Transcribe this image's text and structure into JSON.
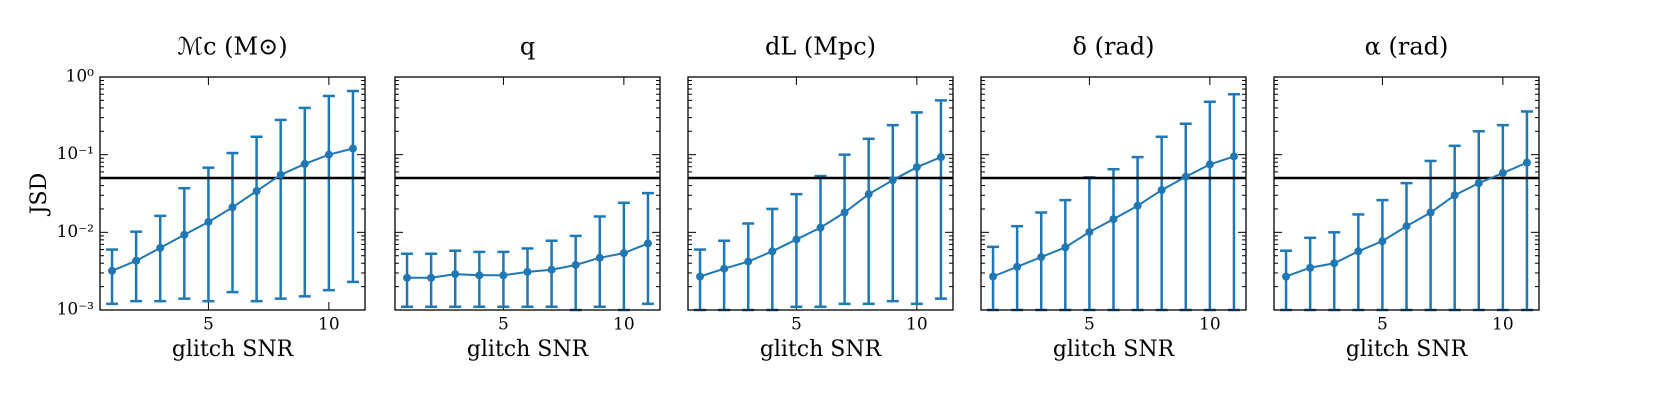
{
  "chart_data": [
    {
      "type": "errorline",
      "title": "ℳc (M⊙)",
      "xlabel": "glitch SNR",
      "ylabel": "JSD",
      "log_y": true,
      "color": "#1f77b4",
      "hline": 0.05,
      "hline_color": "#000000",
      "x": [
        1,
        2,
        3,
        4,
        5,
        6,
        7,
        8,
        9,
        10,
        11
      ],
      "values": [
        0.0032,
        0.0043,
        0.0063,
        0.0093,
        0.0136,
        0.021,
        0.034,
        0.055,
        0.076,
        0.1,
        0.12
      ],
      "lower": [
        0.0012,
        0.0013,
        0.0013,
        0.0014,
        0.0013,
        0.0017,
        0.0013,
        0.0014,
        0.0015,
        0.0018,
        0.0023
      ],
      "upper": [
        0.006,
        0.0102,
        0.0163,
        0.037,
        0.068,
        0.105,
        0.17,
        0.28,
        0.4,
        0.57,
        0.66
      ],
      "xlim": [
        0.5,
        11.5
      ],
      "xticks": [
        5,
        10
      ],
      "ylim": [
        0.001,
        1
      ],
      "yticks": [
        {
          "value": 1,
          "label": "10⁰"
        },
        {
          "value": 0.1,
          "label": "10⁻¹"
        },
        {
          "value": 0.01,
          "label": "10⁻²"
        },
        {
          "value": 0.001,
          "label": "10⁻³"
        }
      ]
    },
    {
      "type": "errorline",
      "title": "q",
      "xlabel": "glitch SNR",
      "log_y": true,
      "color": "#1f77b4",
      "hline": 0.05,
      "hline_color": "#000000",
      "x": [
        1,
        2,
        3,
        4,
        5,
        6,
        7,
        8,
        9,
        10,
        11
      ],
      "values": [
        0.0026,
        0.0026,
        0.0029,
        0.0028,
        0.0028,
        0.0031,
        0.0033,
        0.0038,
        0.0047,
        0.0054,
        0.0072
      ],
      "lower": [
        0.0011,
        0.0011,
        0.0011,
        0.0011,
        0.0011,
        0.0011,
        0.0011,
        0.001,
        0.0011,
        0.001,
        0.0012
      ],
      "upper": [
        0.0053,
        0.0053,
        0.0058,
        0.0056,
        0.0056,
        0.0062,
        0.0078,
        0.009,
        0.016,
        0.024,
        0.032
      ],
      "xlim": [
        0.5,
        11.5
      ],
      "xticks": [
        5,
        10
      ],
      "ylim": [
        0.001,
        1
      ]
    },
    {
      "type": "errorline",
      "title": "dL (Mpc)",
      "xlabel": "glitch SNR",
      "log_y": true,
      "color": "#1f77b4",
      "hline": 0.05,
      "hline_color": "#000000",
      "x": [
        1,
        2,
        3,
        4,
        5,
        6,
        7,
        8,
        9,
        10,
        11
      ],
      "values": [
        0.0027,
        0.0034,
        0.0042,
        0.0057,
        0.0081,
        0.0115,
        0.018,
        0.031,
        0.047,
        0.069,
        0.093
      ],
      "lower": [
        0.001,
        0.001,
        0.001,
        0.001,
        0.0011,
        0.0011,
        0.0012,
        0.0012,
        0.0013,
        0.0012,
        0.0014
      ],
      "upper": [
        0.006,
        0.0078,
        0.013,
        0.02,
        0.031,
        0.053,
        0.1,
        0.16,
        0.24,
        0.35,
        0.5
      ],
      "xlim": [
        0.5,
        11.5
      ],
      "xticks": [
        5,
        10
      ],
      "ylim": [
        0.001,
        1
      ]
    },
    {
      "type": "errorline",
      "title": "δ (rad)",
      "xlabel": "glitch SNR",
      "log_y": true,
      "color": "#1f77b4",
      "hline": 0.05,
      "hline_color": "#000000",
      "x": [
        1,
        2,
        3,
        4,
        5,
        6,
        7,
        8,
        9,
        10,
        11
      ],
      "values": [
        0.0027,
        0.0036,
        0.0048,
        0.0064,
        0.0101,
        0.0148,
        0.022,
        0.035,
        0.052,
        0.075,
        0.095
      ],
      "lower": [
        0.001,
        0.001,
        0.001,
        0.001,
        0.001,
        0.001,
        0.001,
        0.001,
        0.001,
        0.001,
        0.001
      ],
      "upper": [
        0.0065,
        0.012,
        0.018,
        0.026,
        0.051,
        0.065,
        0.093,
        0.17,
        0.25,
        0.48,
        0.6
      ],
      "xlim": [
        0.5,
        11.5
      ],
      "xticks": [
        5,
        10
      ],
      "ylim": [
        0.001,
        1
      ]
    },
    {
      "type": "errorline",
      "title": "α (rad)",
      "xlabel": "glitch SNR",
      "log_y": true,
      "color": "#1f77b4",
      "hline": 0.05,
      "hline_color": "#000000",
      "x": [
        1,
        2,
        3,
        4,
        5,
        6,
        7,
        8,
        9,
        10,
        11
      ],
      "values": [
        0.0027,
        0.0035,
        0.004,
        0.0057,
        0.0077,
        0.012,
        0.018,
        0.03,
        0.043,
        0.058,
        0.079
      ],
      "lower": [
        0.001,
        0.001,
        0.001,
        0.001,
        0.001,
        0.001,
        0.001,
        0.001,
        0.001,
        0.001,
        0.001
      ],
      "upper": [
        0.0058,
        0.0085,
        0.01,
        0.017,
        0.026,
        0.043,
        0.083,
        0.13,
        0.2,
        0.24,
        0.36
      ],
      "xlim": [
        0.5,
        11.5
      ],
      "xticks": [
        5,
        10
      ],
      "ylim": [
        0.001,
        1
      ]
    }
  ]
}
